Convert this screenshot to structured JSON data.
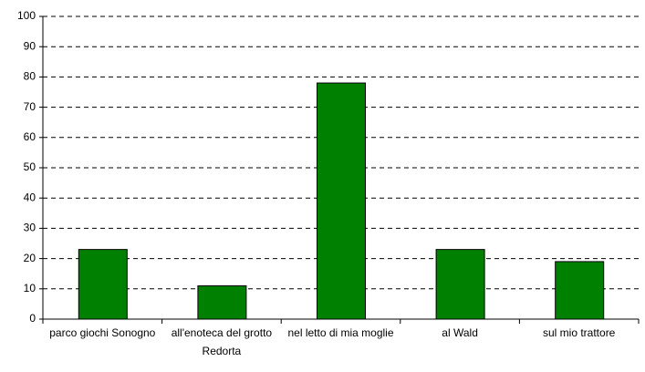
{
  "chart_data": {
    "type": "bar",
    "categories": [
      "parco giochi Sonogno",
      "all'enoteca del grotto Redorta",
      "nel letto di mia moglie",
      "al Wald",
      "sul mio trattore"
    ],
    "values": [
      23,
      11,
      78,
      23,
      19
    ],
    "color": "#008000",
    "ylim": [
      0,
      100
    ],
    "yticks": [
      0,
      10,
      20,
      30,
      40,
      50,
      60,
      70,
      80,
      90,
      100
    ],
    "grid": true
  }
}
